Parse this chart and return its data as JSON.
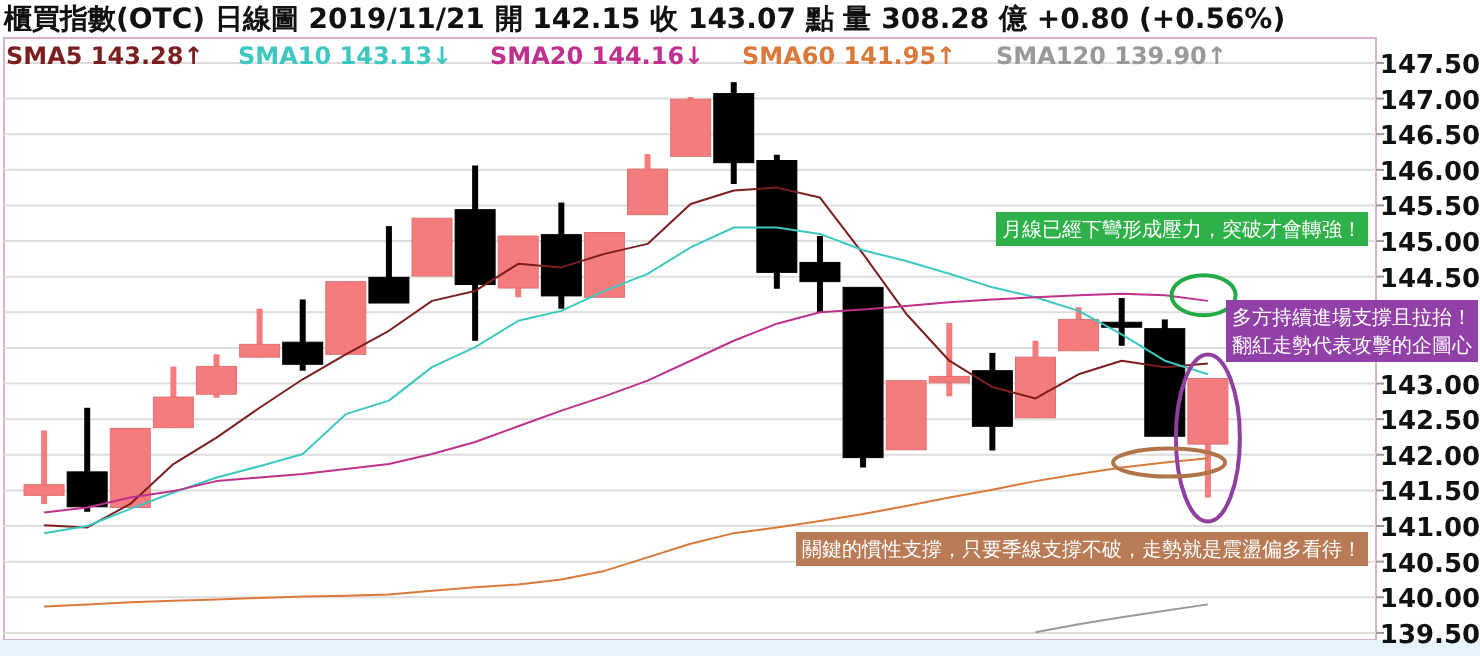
{
  "chart_data": {
    "type": "candlestick",
    "title": "櫃買指數(OTC)   日線圖   2019/11/21   開 142.15   收 143.07   點   量 308.28 億   +0.80 (+0.56%)",
    "categories": [
      null,
      null,
      null,
      null,
      null,
      null,
      null,
      null,
      null,
      null,
      null,
      null,
      null,
      null,
      null,
      null,
      null,
      null,
      null,
      null,
      null,
      null,
      null,
      null,
      null,
      null,
      null,
      null
    ],
    "ohlc": [
      [
        141.43,
        142.34,
        141.31,
        141.58
      ],
      [
        141.76,
        142.66,
        141.2,
        141.27
      ],
      [
        141.26,
        142.37,
        141.26,
        142.37
      ],
      [
        142.38,
        143.24,
        142.38,
        142.81
      ],
      [
        142.85,
        143.41,
        142.8,
        143.24
      ],
      [
        143.37,
        144.05,
        143.37,
        143.55
      ],
      [
        143.58,
        144.18,
        143.18,
        143.27
      ],
      [
        143.41,
        144.43,
        143.41,
        144.43
      ],
      [
        144.49,
        145.21,
        144.13,
        144.13
      ],
      [
        144.51,
        145.32,
        144.51,
        145.32
      ],
      [
        145.44,
        146.06,
        143.6,
        144.39
      ],
      [
        144.34,
        145.07,
        144.21,
        145.07
      ],
      [
        145.09,
        145.54,
        144.05,
        144.23
      ],
      [
        144.21,
        145.12,
        144.21,
        145.12
      ],
      [
        145.37,
        146.22,
        145.37,
        146.01
      ],
      [
        146.19,
        147.02,
        146.19,
        146.99
      ],
      [
        147.07,
        147.23,
        145.8,
        146.1
      ],
      [
        146.13,
        146.21,
        144.33,
        144.56
      ],
      [
        144.7,
        145.07,
        143.99,
        144.43
      ],
      [
        144.35,
        144.35,
        141.82,
        141.96
      ],
      [
        142.07,
        143.04,
        142.07,
        143.04
      ],
      [
        143.01,
        143.85,
        142.82,
        143.1
      ],
      [
        143.18,
        143.43,
        142.06,
        142.4
      ],
      [
        142.52,
        143.6,
        142.52,
        143.37
      ],
      [
        143.46,
        144.07,
        143.46,
        143.9
      ],
      [
        143.86,
        144.2,
        143.53,
        143.79
      ],
      [
        143.77,
        143.9,
        142.26,
        142.26
      ],
      [
        142.15,
        143.07,
        141.4,
        143.07
      ]
    ],
    "colors": [
      "#f47c7c",
      "#000000",
      "#f47c7c",
      "#f47c7c",
      "#f47c7c",
      "#f47c7c",
      "#000000",
      "#f47c7c",
      "#000000",
      "#f47c7c",
      "#000000",
      "#f47c7c",
      "#000000",
      "#f47c7c",
      "#f47c7c",
      "#f47c7c",
      "#000000",
      "#000000",
      "#000000",
      "#000000",
      "#f47c7c",
      "#f47c7c",
      "#000000",
      "#f47c7c",
      "#f47c7c",
      "#000000",
      "#000000",
      "#f47c7c"
    ],
    "series": [
      {
        "type": "line",
        "name": "SMA5 143.28↑",
        "color": "#7a1f1f",
        "values": [
          141.01,
          140.98,
          141.31,
          141.87,
          142.24,
          142.66,
          143.06,
          143.41,
          143.74,
          144.16,
          144.3,
          144.68,
          144.63,
          144.82,
          144.96,
          145.52,
          145.71,
          145.75,
          145.61,
          144.82,
          143.98,
          143.32,
          142.95,
          142.79,
          143.13,
          143.32,
          143.23,
          143.28
        ]
      },
      {
        "type": "line",
        "name": "SMA10 143.13↓",
        "color": "#3cc8c0",
        "values": [
          140.9,
          141.0,
          141.24,
          141.47,
          141.68,
          141.84,
          142.01,
          142.57,
          142.76,
          143.23,
          143.51,
          143.88,
          144.02,
          144.3,
          144.54,
          144.91,
          145.19,
          145.19,
          145.1,
          144.87,
          144.72,
          144.54,
          144.35,
          144.21,
          144.02,
          143.69,
          143.32,
          143.13
        ]
      },
      {
        "type": "line",
        "name": "SMA20 144.16↓",
        "color": "#c0308f",
        "values": [
          141.19,
          141.26,
          141.4,
          141.49,
          141.63,
          141.68,
          141.73,
          141.8,
          141.87,
          142.01,
          142.18,
          142.4,
          142.62,
          142.82,
          143.04,
          143.32,
          143.6,
          143.84,
          144.0,
          144.04,
          144.09,
          144.14,
          144.18,
          144.21,
          144.24,
          144.26,
          144.24,
          144.16
        ]
      },
      {
        "type": "line",
        "name": "SMA60 141.95↑",
        "color": "#d9793a",
        "values": [
          139.87,
          139.9,
          139.93,
          139.95,
          139.97,
          139.99,
          140.01,
          140.02,
          140.04,
          140.09,
          140.14,
          140.18,
          140.25,
          140.37,
          140.56,
          140.75,
          140.9,
          140.98,
          141.07,
          141.17,
          141.28,
          141.4,
          141.51,
          141.63,
          141.73,
          141.82,
          141.89,
          141.95
        ]
      },
      {
        "type": "line",
        "name": "SMA120 139.90↑",
        "color": "#999999",
        "values": [
          null,
          null,
          null,
          null,
          null,
          null,
          null,
          null,
          null,
          null,
          null,
          null,
          null,
          null,
          null,
          null,
          null,
          null,
          null,
          null,
          null,
          null,
          null,
          139.51,
          139.62,
          139.72,
          139.81,
          139.9
        ]
      }
    ],
    "ylim": [
      139.4,
      147.85
    ],
    "yticks": [
      {
        "value": 139.5,
        "label": "139.50"
      },
      {
        "value": 140,
        "label": "140.00"
      },
      {
        "value": 140.5,
        "label": "140.50"
      },
      {
        "value": 141,
        "label": "141.00"
      },
      {
        "value": 141.5,
        "label": "141.50"
      },
      {
        "value": 142,
        "label": "142.00"
      },
      {
        "value": 142.5,
        "label": "142.50"
      },
      {
        "value": 143,
        "label": "143.00"
      },
      {
        "value": 143.5,
        "label": null
      },
      {
        "value": 144,
        "label": null
      },
      {
        "value": 144.5,
        "label": "144.50"
      },
      {
        "value": 145,
        "label": "145.00"
      },
      {
        "value": 145.5,
        "label": "145.50"
      },
      {
        "value": 146,
        "label": "146.00"
      },
      {
        "value": 146.5,
        "label": "146.50"
      },
      {
        "value": 147,
        "label": "147.00"
      },
      {
        "value": 147.5,
        "label": "147.50"
      }
    ],
    "grid": "y",
    "legend": "top left",
    "annotations": [
      "月線已經下彎形成壓力，突破才會轉強！",
      "多方持續進場支撐且拉抬！翻紅走勢代表攻擊的企圖心",
      "關鍵的慣性支撐，只要季線支撐不破，走勢就是震盪偏多看待！"
    ]
  }
}
